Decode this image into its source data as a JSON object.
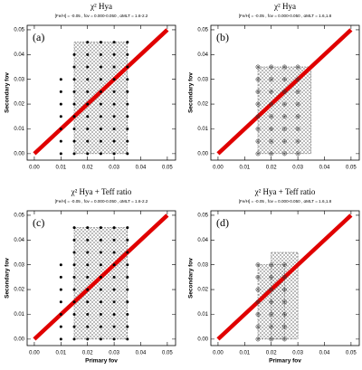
{
  "chart_data": [
    {
      "type": "scatter",
      "panel": "(a)",
      "title": "χ² Hya",
      "subtitle": "[Fe/H] = -0.05 , fov = 0.000-0.050 , αMLT = 1.6-2.2",
      "ylabel": "Secondary fov",
      "xlim": [
        -0.0027,
        0.0531
      ],
      "ylim": [
        -0.0026,
        0.0518
      ],
      "xticks": [
        {
          "value": 0,
          "label": "0.00"
        },
        0.01,
        0.02,
        0.03,
        0.04,
        0.05
      ],
      "yticks": [
        {
          "value": 0,
          "label": "0.00"
        },
        0.01,
        0.02,
        0.03,
        0.04,
        0.05
      ],
      "regions": [
        {
          "x": [
            0.015,
            0.035
          ],
          "y": [
            0,
            0.045
          ]
        }
      ],
      "line": {
        "color": "#e00000",
        "x": [
          0,
          0.05
        ],
        "values": [
          0,
          0.05
        ]
      },
      "points": {
        "marker": "dot",
        "x": [
          0.01,
          0.01,
          0.01,
          0.01,
          0.01,
          0.01,
          0.01,
          0.015,
          0.015,
          0.015,
          0.015,
          0.015,
          0.015,
          0.015,
          0.015,
          0.015,
          0.02,
          0.02,
          0.02,
          0.02,
          0.02,
          0.02,
          0.02,
          0.02,
          0.02,
          0.02,
          0.025,
          0.025,
          0.025,
          0.025,
          0.025,
          0.025,
          0.025,
          0.025,
          0.025,
          0.025,
          0.03,
          0.03,
          0.03,
          0.03,
          0.03,
          0.03,
          0.03,
          0.03,
          0.03,
          0.03,
          0.035,
          0.035,
          0.035,
          0.035,
          0.035,
          0.035,
          0.035,
          0.035,
          0.035,
          0.035
        ],
        "values": [
          0,
          0.005,
          0.01,
          0.015,
          0.02,
          0.025,
          0.03,
          0,
          0.005,
          0.01,
          0.015,
          0.02,
          0.025,
          0.03,
          0.035,
          0.04,
          0,
          0.005,
          0.01,
          0.015,
          0.02,
          0.025,
          0.03,
          0.035,
          0.04,
          0.045,
          0,
          0.005,
          0.01,
          0.015,
          0.02,
          0.025,
          0.03,
          0.035,
          0.04,
          0.045,
          0,
          0.005,
          0.01,
          0.015,
          0.02,
          0.025,
          0.03,
          0.035,
          0.04,
          0.045,
          0,
          0.005,
          0.01,
          0.015,
          0.02,
          0.025,
          0.03,
          0.035,
          0.04,
          0.045
        ]
      }
    },
    {
      "type": "scatter",
      "panel": "(b)",
      "title": "χ² Hya",
      "subtitle": "[Fe/H] = -0.05 , fov = 0.000-0.050 , αMLT = 1.6,1.8",
      "ylabel": "Secondary fov",
      "xlim": [
        -0.0027,
        0.0531
      ],
      "ylim": [
        -0.0026,
        0.0518
      ],
      "xticks": [
        {
          "value": 0,
          "label": "0.00"
        },
        0.01,
        0.02,
        0.03,
        0.04,
        0.05
      ],
      "yticks": [
        {
          "value": 0,
          "label": "0.00"
        },
        0.01,
        0.02,
        0.03,
        0.04,
        0.05
      ],
      "regions": [
        {
          "x": [
            0.015,
            0.035
          ],
          "y": [
            0,
            0.035
          ]
        }
      ],
      "line": {
        "color": "#e00000",
        "x": [
          0,
          0.05
        ],
        "values": [
          0,
          0.05
        ]
      },
      "points": {
        "marker": "star-circle",
        "x": [
          0.015,
          0.015,
          0.015,
          0.015,
          0.015,
          0.015,
          0.015,
          0.015,
          0.02,
          0.02,
          0.02,
          0.02,
          0.02,
          0.02,
          0.02,
          0.02,
          0.025,
          0.025,
          0.025,
          0.025,
          0.025,
          0.025,
          0.025,
          0.025,
          0.03,
          0.03,
          0.03,
          0.03,
          0.03,
          0.03,
          0.03,
          0.03
        ],
        "values": [
          0,
          0.005,
          0.01,
          0.015,
          0.02,
          0.025,
          0.03,
          0.035,
          0,
          0.005,
          0.01,
          0.015,
          0.02,
          0.025,
          0.03,
          0.035,
          0,
          0.005,
          0.01,
          0.015,
          0.02,
          0.025,
          0.03,
          0.035,
          0,
          0.005,
          0.01,
          0.015,
          0.02,
          0.025,
          0.03,
          0.035
        ]
      }
    },
    {
      "type": "scatter",
      "panel": "(c)",
      "title": "χ² Hya + Teff ratio",
      "subtitle": "[Fe/H] = -0.05 , fov = 0.000-0.050 , αMLT = 1.6-2.2",
      "xlabel": "Primary fov",
      "ylabel": "Secondary fov",
      "xlim": [
        -0.0027,
        0.0531
      ],
      "ylim": [
        -0.0026,
        0.0518
      ],
      "xticks": [
        {
          "value": 0,
          "label": "0.00"
        },
        0.01,
        0.02,
        0.03,
        0.04,
        0.05
      ],
      "yticks": [
        {
          "value": 0,
          "label": "0.00"
        },
        0.01,
        0.02,
        0.03,
        0.04,
        0.05
      ],
      "regions": [
        {
          "x": [
            0.015,
            0.035
          ],
          "y": [
            0,
            0.045
          ]
        }
      ],
      "line": {
        "color": "#e00000",
        "x": [
          0,
          0.05
        ],
        "values": [
          0,
          0.05
        ]
      },
      "points": {
        "marker": "dot",
        "x": [
          0.01,
          0.01,
          0.01,
          0.01,
          0.01,
          0.01,
          0.01,
          0.015,
          0.015,
          0.015,
          0.015,
          0.015,
          0.015,
          0.015,
          0.015,
          0.015,
          0.015,
          0.02,
          0.02,
          0.02,
          0.02,
          0.02,
          0.02,
          0.02,
          0.02,
          0.02,
          0.02,
          0.025,
          0.025,
          0.025,
          0.025,
          0.025,
          0.025,
          0.025,
          0.025,
          0.025,
          0.025,
          0.03,
          0.03,
          0.03,
          0.03,
          0.03,
          0.03,
          0.03,
          0.03,
          0.03,
          0.03,
          0.035,
          0.035,
          0.035,
          0.035,
          0.035,
          0.035,
          0.035,
          0.035,
          0.035,
          0.035
        ],
        "values": [
          0,
          0.005,
          0.01,
          0.015,
          0.02,
          0.025,
          0.03,
          0,
          0.005,
          0.01,
          0.015,
          0.02,
          0.025,
          0.03,
          0.035,
          0.04,
          0.045,
          0,
          0.005,
          0.01,
          0.015,
          0.02,
          0.025,
          0.03,
          0.035,
          0.04,
          0.045,
          0,
          0.005,
          0.01,
          0.015,
          0.02,
          0.025,
          0.03,
          0.035,
          0.04,
          0.045,
          0,
          0.005,
          0.01,
          0.015,
          0.02,
          0.025,
          0.03,
          0.035,
          0.04,
          0.045,
          0,
          0.005,
          0.01,
          0.015,
          0.02,
          0.025,
          0.03,
          0.035,
          0.04,
          0.045
        ]
      }
    },
    {
      "type": "scatter",
      "panel": "(d)",
      "title": "χ² Hya + Teff ratio",
      "subtitle": "[Fe/H] = -0.05 , fov = 0.000-0.050 , αMLT = 1.6,1.8",
      "xlabel": "Primary fov",
      "ylabel": "Secondary fov",
      "xlim": [
        -0.0027,
        0.0531
      ],
      "ylim": [
        -0.0026,
        0.0518
      ],
      "xticks": [
        {
          "value": 0,
          "label": "0.00"
        },
        0.01,
        0.02,
        0.03,
        0.04,
        0.05
      ],
      "yticks": [
        {
          "value": 0,
          "label": "0.00"
        },
        0.01,
        0.02,
        0.03,
        0.04,
        0.05
      ],
      "regions": [
        {
          "x": [
            0.015,
            0.025
          ],
          "y": [
            0,
            0.03
          ]
        },
        {
          "x": [
            0.02,
            0.03
          ],
          "y": [
            0,
            0.035
          ]
        }
      ],
      "line": {
        "color": "#e00000",
        "x": [
          0,
          0.05
        ],
        "values": [
          0,
          0.05
        ]
      },
      "points": {
        "marker": "star-circle",
        "x": [
          0.015,
          0.015,
          0.015,
          0.015,
          0.015,
          0.015,
          0.015,
          0.02,
          0.02,
          0.02,
          0.02,
          0.02,
          0.02,
          0.02,
          0.025,
          0.025,
          0.025,
          0.025,
          0.025,
          0.025,
          0.025
        ],
        "values": [
          0,
          0.005,
          0.01,
          0.015,
          0.02,
          0.025,
          0.03,
          0,
          0.005,
          0.01,
          0.015,
          0.02,
          0.025,
          0.03,
          0,
          0.005,
          0.01,
          0.015,
          0.02,
          0.025,
          0.03
        ]
      }
    }
  ]
}
